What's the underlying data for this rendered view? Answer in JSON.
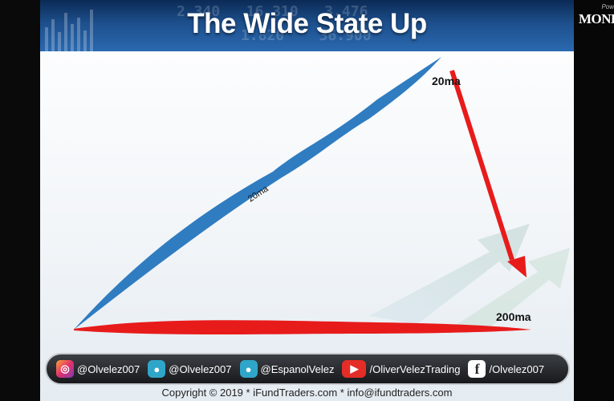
{
  "slide": {
    "title": "The Wide State Up",
    "labels": {
      "ma20_top": "20ma",
      "ma20_along_line": "20ma",
      "ma200": "200ma"
    }
  },
  "colors": {
    "ma20_line": "#2f7cc1",
    "ma200_line": "#e81b1b",
    "arrow": "#e81b1b",
    "footer_bg": "#1f2226"
  },
  "footer": {
    "socials": [
      {
        "icon": "instagram-icon",
        "label": "@Olvelez007"
      },
      {
        "icon": "periscope-icon",
        "label": "@Olvelez007"
      },
      {
        "icon": "periscope-icon",
        "label": "@EspanolVelez"
      },
      {
        "icon": "youtube-icon",
        "label": "/OliverVelezTrading"
      },
      {
        "icon": "facebook-icon",
        "label": "/Olvelez007"
      }
    ],
    "copyright": "Copyright  © 2019    *     iFundTraders.com     *     info@ifundtraders.com"
  },
  "side_panel": {
    "powered": "Pow",
    "logo": "MONE"
  }
}
